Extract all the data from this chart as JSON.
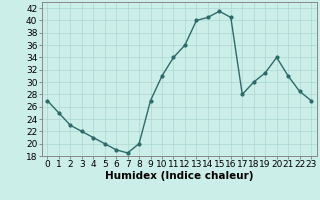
{
  "x": [
    0,
    1,
    2,
    3,
    4,
    5,
    6,
    7,
    8,
    9,
    10,
    11,
    12,
    13,
    14,
    15,
    16,
    17,
    18,
    19,
    20,
    21,
    22,
    23
  ],
  "y": [
    27,
    25,
    23,
    22,
    21,
    20,
    19,
    18.5,
    20,
    27,
    31,
    34,
    36,
    40,
    40.5,
    41.5,
    40.5,
    28,
    30,
    31.5,
    34,
    31,
    28.5,
    27
  ],
  "line_color": "#2d6b6b",
  "marker": ".",
  "marker_size": 4,
  "background_color": "#cceee8",
  "grid_color": "#aad8d0",
  "xlabel": "Humidex (Indice chaleur)",
  "ylim": [
    18,
    43
  ],
  "xlim": [
    -0.5,
    23.5
  ],
  "yticks": [
    18,
    20,
    22,
    24,
    26,
    28,
    30,
    32,
    34,
    36,
    38,
    40,
    42
  ],
  "xticks": [
    0,
    1,
    2,
    3,
    4,
    5,
    6,
    7,
    8,
    9,
    10,
    11,
    12,
    13,
    14,
    15,
    16,
    17,
    18,
    19,
    20,
    21,
    22,
    23
  ],
  "xlabel_fontsize": 7.5,
  "tick_fontsize": 6.5,
  "linewidth": 1.0
}
